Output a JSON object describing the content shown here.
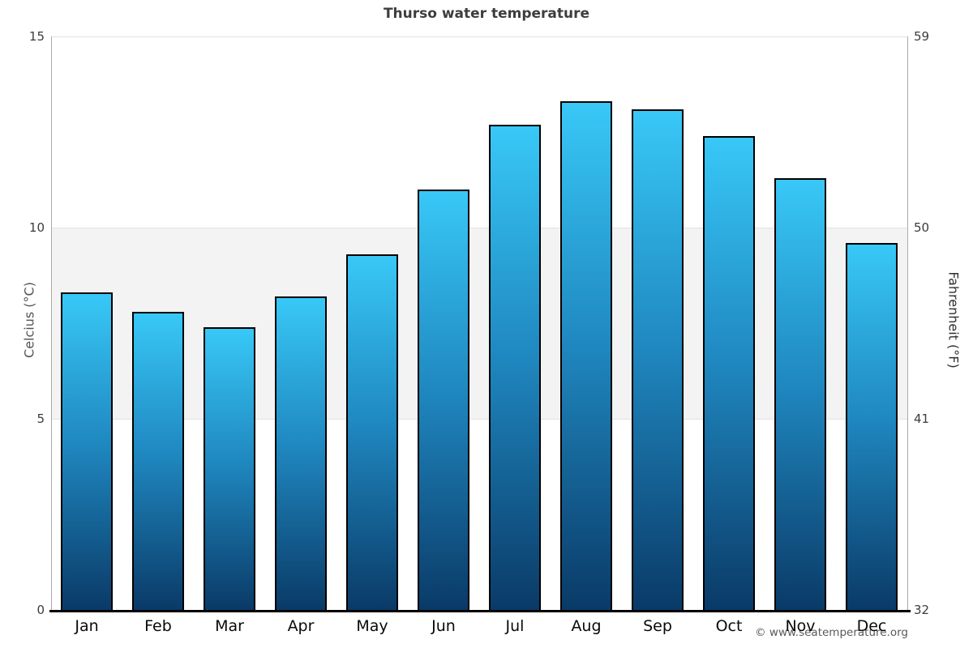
{
  "title": "Thurso water temperature",
  "copyright": "© www.seatemperature.org",
  "axes": {
    "left_label": "Celcius (°C)",
    "right_label": "Fahrenheit (°F)"
  },
  "chart_data": {
    "type": "bar",
    "title": "Thurso water temperature",
    "categories": [
      "Jan",
      "Feb",
      "Mar",
      "Apr",
      "May",
      "Jun",
      "Jul",
      "Aug",
      "Sep",
      "Oct",
      "Nov",
      "Dec"
    ],
    "values": [
      8.3,
      7.8,
      7.4,
      8.2,
      9.3,
      11.0,
      12.7,
      13.3,
      13.1,
      12.4,
      11.3,
      9.6
    ],
    "xlabel": "",
    "ylabel_left": "Celcius (°C)",
    "ylabel_right": "Fahrenheit (°F)",
    "ylim": [
      0,
      15
    ],
    "yticks_celsius": [
      15,
      10,
      5,
      0
    ],
    "yticks_fahrenheit": [
      59,
      50,
      41,
      32
    ],
    "grid": "horizontal",
    "legend": "none",
    "band": {
      "from": 5,
      "to": 10,
      "color": "#f3f3f3"
    },
    "bar_gradient_top": "#38c8f7",
    "bar_gradient_mid": "#1f87bf",
    "bar_gradient_bottom": "#0a3a67",
    "bar_border_color": "#000000",
    "axis_line_color": "#000000",
    "spine_color": "#a9a9a9",
    "gridline_color": "#e2e2e2"
  }
}
